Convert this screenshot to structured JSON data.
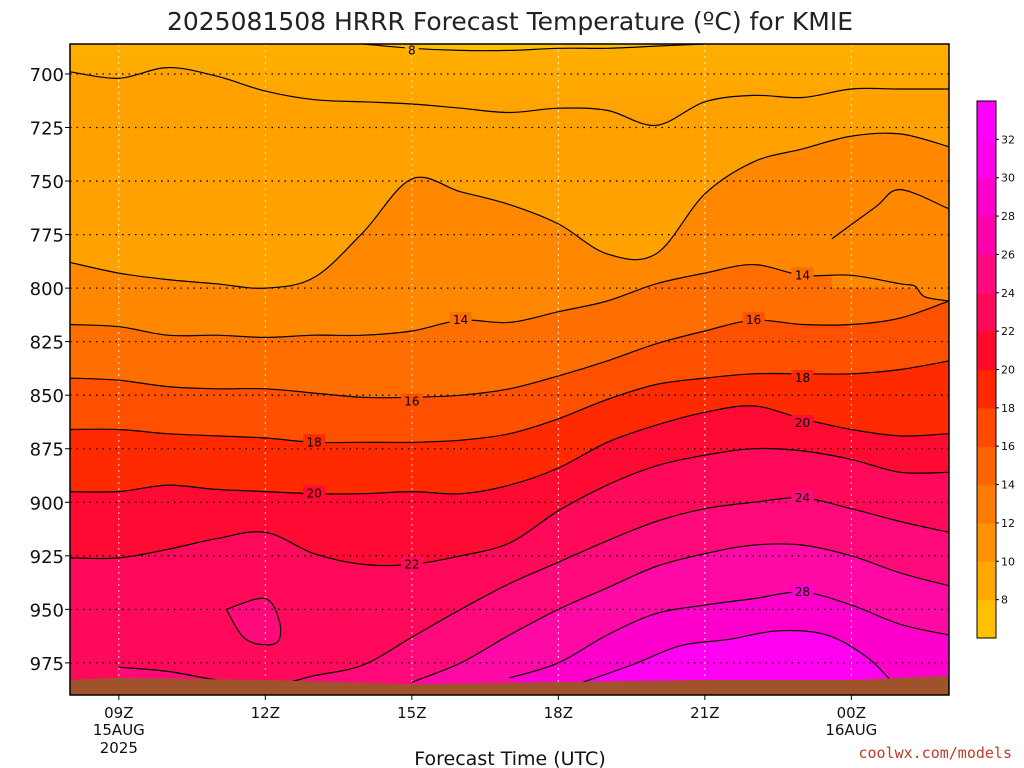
{
  "chart_data": {
    "type": "contour",
    "title": "2025081508 HRRR Forecast Temperature (ºC) for KMIE",
    "xlabel": "Forecast Time (UTC)",
    "ylabel": "",
    "credit": "coolwx.com/models",
    "y_ticks": [
      700,
      725,
      750,
      775,
      800,
      825,
      850,
      875,
      900,
      925,
      950,
      975
    ],
    "y_range": [
      686,
      990
    ],
    "y_reversed": true,
    "x_range_hours": [
      8,
      26
    ],
    "x_ticks": [
      {
        "hour": 9,
        "label": "09Z",
        "sub1": "15AUG",
        "sub2": "2025"
      },
      {
        "hour": 12,
        "label": "12Z",
        "sub1": "",
        "sub2": ""
      },
      {
        "hour": 15,
        "label": "15Z",
        "sub1": "",
        "sub2": ""
      },
      {
        "hour": 18,
        "label": "18Z",
        "sub1": "",
        "sub2": ""
      },
      {
        "hour": 21,
        "label": "21Z",
        "sub1": "",
        "sub2": ""
      },
      {
        "hour": 24,
        "label": "00Z",
        "sub1": "16AUG",
        "sub2": ""
      }
    ],
    "grid": true,
    "levels": [
      8,
      10,
      12,
      14,
      16,
      18,
      20,
      22,
      24,
      26,
      28,
      30,
      32
    ],
    "colorbar": {
      "ticks": [
        8,
        10,
        12,
        14,
        16,
        18,
        20,
        22,
        24,
        26,
        28,
        30,
        32
      ],
      "colors": [
        "#ffc000",
        "#ffa800",
        "#ff9200",
        "#ff7c00",
        "#ff6400",
        "#ff4a00",
        "#ff2800",
        "#ff0a2a",
        "#ff0a5a",
        "#ff0a80",
        "#ff00aa",
        "#ff00cc",
        "#ff00ee",
        "#ff00ff"
      ]
    },
    "ground_color": "#a0522d",
    "contour_labels": [
      {
        "value": "8",
        "hour": 15.0,
        "pressure": 689
      },
      {
        "value": "14",
        "hour": 23.0,
        "pressure": 794
      },
      {
        "value": "14",
        "hour": 16.0,
        "pressure": 815
      },
      {
        "value": "16",
        "hour": 22.0,
        "pressure": 815
      },
      {
        "value": "16",
        "hour": 15.0,
        "pressure": 853
      },
      {
        "value": "18",
        "hour": 23.0,
        "pressure": 842
      },
      {
        "value": "18",
        "hour": 13.0,
        "pressure": 872
      },
      {
        "value": "20",
        "hour": 23.0,
        "pressure": 863
      },
      {
        "value": "20",
        "hour": 13.0,
        "pressure": 896
      },
      {
        "value": "22",
        "hour": 15.0,
        "pressure": 929
      },
      {
        "value": "24",
        "hour": 23.0,
        "pressure": 898
      },
      {
        "value": "28",
        "hour": 23.0,
        "pressure": 942
      }
    ],
    "isotherms": [
      {
        "value": 8,
        "points": [
          [
            14,
            686
          ],
          [
            15,
            688
          ],
          [
            16,
            689
          ],
          [
            17,
            689
          ],
          [
            18,
            688
          ],
          [
            19,
            688
          ],
          [
            20,
            687
          ],
          [
            21,
            686
          ]
        ]
      },
      {
        "value": 10,
        "points": [
          [
            8,
            699
          ],
          [
            9,
            702
          ],
          [
            10,
            697
          ],
          [
            11,
            701
          ],
          [
            12,
            708
          ],
          [
            13,
            712
          ],
          [
            14,
            713
          ],
          [
            15,
            714
          ],
          [
            16,
            716
          ],
          [
            17,
            718
          ],
          [
            18,
            716
          ],
          [
            19,
            717
          ],
          [
            20,
            724
          ],
          [
            21,
            713
          ],
          [
            22,
            710
          ],
          [
            23,
            711
          ],
          [
            24,
            707
          ],
          [
            25,
            707
          ],
          [
            26,
            707
          ]
        ]
      },
      {
        "value": 12,
        "points": [
          [
            8,
            788
          ],
          [
            9,
            793
          ],
          [
            10,
            796
          ],
          [
            11,
            798
          ],
          [
            12,
            800
          ],
          [
            13,
            795
          ],
          [
            14,
            774
          ],
          [
            15,
            749
          ],
          [
            16,
            755
          ],
          [
            17,
            761
          ],
          [
            18,
            770
          ],
          [
            19,
            784
          ],
          [
            20,
            784
          ],
          [
            21,
            756
          ],
          [
            22,
            741
          ],
          [
            23,
            735
          ],
          [
            24,
            729
          ],
          [
            25,
            728
          ],
          [
            26,
            734
          ]
        ]
      },
      {
        "value": "12b",
        "points": [
          [
            23.6,
            777
          ],
          [
            24.5,
            762
          ],
          [
            25,
            754
          ],
          [
            26,
            763
          ]
        ]
      },
      {
        "value": 14,
        "points": [
          [
            8,
            817
          ],
          [
            9,
            818
          ],
          [
            10,
            822
          ],
          [
            11,
            822
          ],
          [
            12,
            823
          ],
          [
            13,
            822
          ],
          [
            14,
            822
          ],
          [
            15,
            820
          ],
          [
            16,
            815
          ],
          [
            17,
            816
          ],
          [
            18,
            811
          ],
          [
            19,
            806
          ],
          [
            20,
            798
          ],
          [
            21,
            793
          ],
          [
            22,
            789
          ],
          [
            23,
            794
          ],
          [
            24,
            794
          ],
          [
            25,
            798
          ],
          [
            25.3,
            799
          ],
          [
            25.5,
            804
          ],
          [
            26,
            806
          ]
        ]
      },
      {
        "value": 16,
        "points": [
          [
            8,
            842
          ],
          [
            9,
            843
          ],
          [
            10,
            846
          ],
          [
            11,
            847
          ],
          [
            12,
            847
          ],
          [
            13,
            849
          ],
          [
            14,
            851
          ],
          [
            15,
            851
          ],
          [
            16,
            850
          ],
          [
            17,
            847
          ],
          [
            18,
            841
          ],
          [
            19,
            834
          ],
          [
            20,
            826
          ],
          [
            21,
            820
          ],
          [
            22,
            815
          ],
          [
            23,
            817
          ],
          [
            24,
            817
          ],
          [
            25,
            814
          ],
          [
            26,
            806
          ]
        ]
      },
      {
        "value": 18,
        "points": [
          [
            8,
            866
          ],
          [
            9,
            866
          ],
          [
            10,
            868
          ],
          [
            11,
            869
          ],
          [
            12,
            870
          ],
          [
            13,
            872
          ],
          [
            14,
            872
          ],
          [
            15,
            872
          ],
          [
            16,
            871
          ],
          [
            17,
            868
          ],
          [
            18,
            861
          ],
          [
            19,
            852
          ],
          [
            20,
            845
          ],
          [
            21,
            842
          ],
          [
            22,
            840
          ],
          [
            23,
            840
          ],
          [
            24,
            840
          ],
          [
            25,
            838
          ],
          [
            26,
            834
          ]
        ]
      },
      {
        "value": 20,
        "points": [
          [
            8,
            895
          ],
          [
            9,
            895
          ],
          [
            10,
            892
          ],
          [
            11,
            894
          ],
          [
            12,
            895
          ],
          [
            13,
            896
          ],
          [
            14,
            896
          ],
          [
            15,
            895
          ],
          [
            16,
            896
          ],
          [
            17,
            892
          ],
          [
            18,
            884
          ],
          [
            19,
            872
          ],
          [
            20,
            864
          ],
          [
            21,
            858
          ],
          [
            22,
            855
          ],
          [
            23,
            861
          ],
          [
            24,
            866
          ],
          [
            25,
            869
          ],
          [
            26,
            868
          ]
        ]
      },
      {
        "value": 22,
        "points": [
          [
            8,
            926
          ],
          [
            9,
            926
          ],
          [
            10,
            922
          ],
          [
            11,
            917
          ],
          [
            12,
            914
          ],
          [
            13,
            924
          ],
          [
            14,
            929
          ],
          [
            15,
            929
          ],
          [
            16,
            925
          ],
          [
            17,
            919
          ],
          [
            18,
            904
          ],
          [
            19,
            892
          ],
          [
            20,
            883
          ],
          [
            21,
            878
          ],
          [
            22,
            875
          ],
          [
            23,
            876
          ],
          [
            24,
            880
          ],
          [
            25,
            886
          ],
          [
            26,
            886
          ]
        ]
      },
      {
        "value": 24,
        "points": [
          [
            9,
            977
          ],
          [
            10,
            979
          ],
          [
            11,
            983
          ],
          [
            12,
            986
          ],
          [
            13,
            981
          ],
          [
            14,
            976
          ],
          [
            15,
            963
          ],
          [
            16,
            950
          ],
          [
            17,
            938
          ],
          [
            18,
            928
          ],
          [
            19,
            918
          ],
          [
            20,
            909
          ],
          [
            21,
            903
          ],
          [
            22,
            900
          ],
          [
            23,
            898
          ],
          [
            24,
            903
          ],
          [
            25,
            909
          ],
          [
            26,
            914
          ]
        ]
      },
      {
        "value": "24b",
        "points": [
          [
            11.2,
            950
          ],
          [
            12,
            945
          ],
          [
            12.3,
            957
          ],
          [
            12.2,
            966
          ],
          [
            11.6,
            964
          ],
          [
            11.2,
            950
          ]
        ]
      },
      {
        "value": 26,
        "points": [
          [
            15,
            984
          ],
          [
            16,
            975
          ],
          [
            17,
            962
          ],
          [
            18,
            950
          ],
          [
            19,
            940
          ],
          [
            20,
            930
          ],
          [
            21,
            924
          ],
          [
            22,
            920
          ],
          [
            23,
            920
          ],
          [
            24,
            925
          ],
          [
            25,
            933
          ],
          [
            26,
            939
          ]
        ]
      },
      {
        "value": 28,
        "points": [
          [
            17,
            982
          ],
          [
            18,
            975
          ],
          [
            19,
            962
          ],
          [
            20,
            952
          ],
          [
            21,
            948
          ],
          [
            22,
            945
          ],
          [
            23,
            942
          ],
          [
            24,
            948
          ],
          [
            25,
            957
          ],
          [
            26,
            962
          ]
        ]
      },
      {
        "value": 30,
        "points": [
          [
            18.5,
            984
          ],
          [
            19.5,
            976
          ],
          [
            20.5,
            967
          ],
          [
            21.5,
            964
          ],
          [
            22.5,
            960
          ],
          [
            23.5,
            962
          ],
          [
            24.3,
            972
          ],
          [
            24.8,
            983
          ]
        ]
      }
    ]
  }
}
